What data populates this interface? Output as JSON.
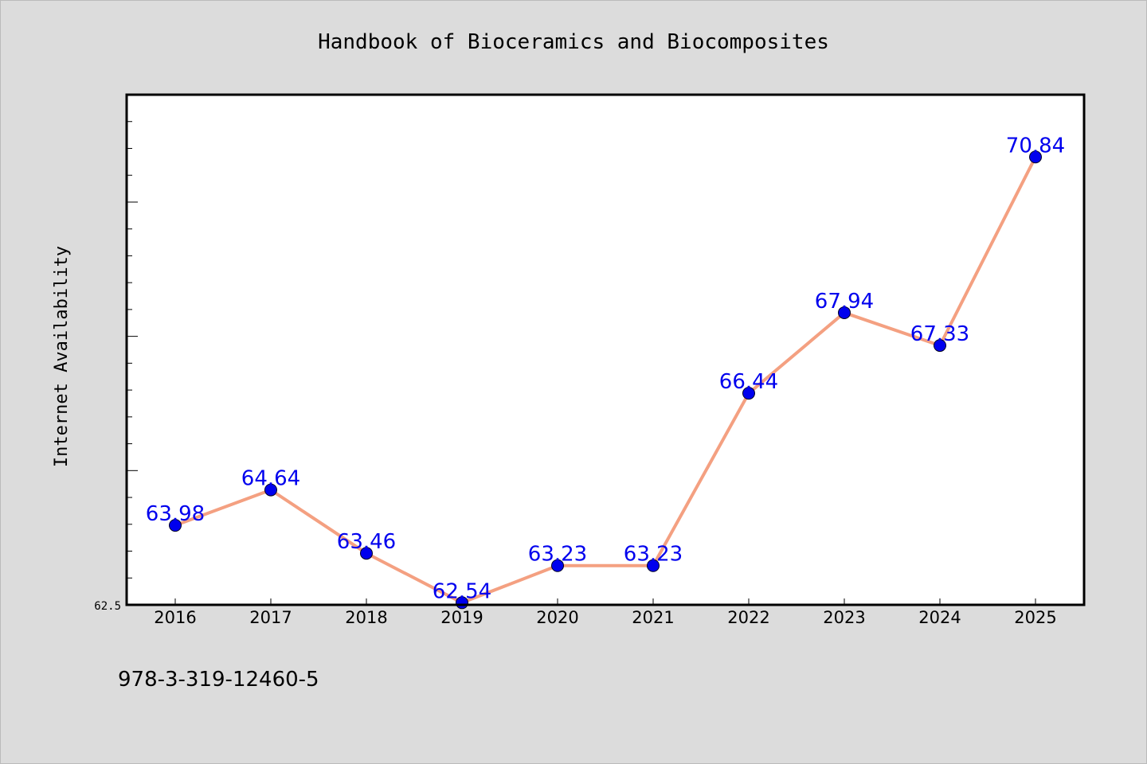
{
  "colors": {
    "background": "#dcdcdc",
    "plot_background": "#ffffff",
    "line": "#f4a081",
    "marker": "#0000ee",
    "data_label": "#0000ee"
  },
  "footer": {
    "isbn": "978-3-319-12460-5"
  },
  "chart_data": {
    "type": "line",
    "title": "Handbook of Bioceramics and Biocomposites",
    "xlabel": "",
    "ylabel": "Internet Availability",
    "categories": [
      "2016",
      "2017",
      "2018",
      "2019",
      "2020",
      "2021",
      "2022",
      "2023",
      "2024",
      "2025"
    ],
    "series": [
      {
        "values": [
          63.98,
          64.64,
          63.46,
          62.54,
          63.23,
          63.23,
          66.44,
          67.94,
          67.33,
          70.84
        ]
      }
    ],
    "data_labels": [
      "63.98",
      "64.64",
      "63.46",
      "62.54",
      "63.23",
      "63.23",
      "66.44",
      "67.94",
      "67.33",
      "70.84"
    ],
    "yticks": [
      "62.5"
    ],
    "ylim": [
      62.5,
      72.0
    ],
    "grid": false,
    "legend": "none"
  }
}
